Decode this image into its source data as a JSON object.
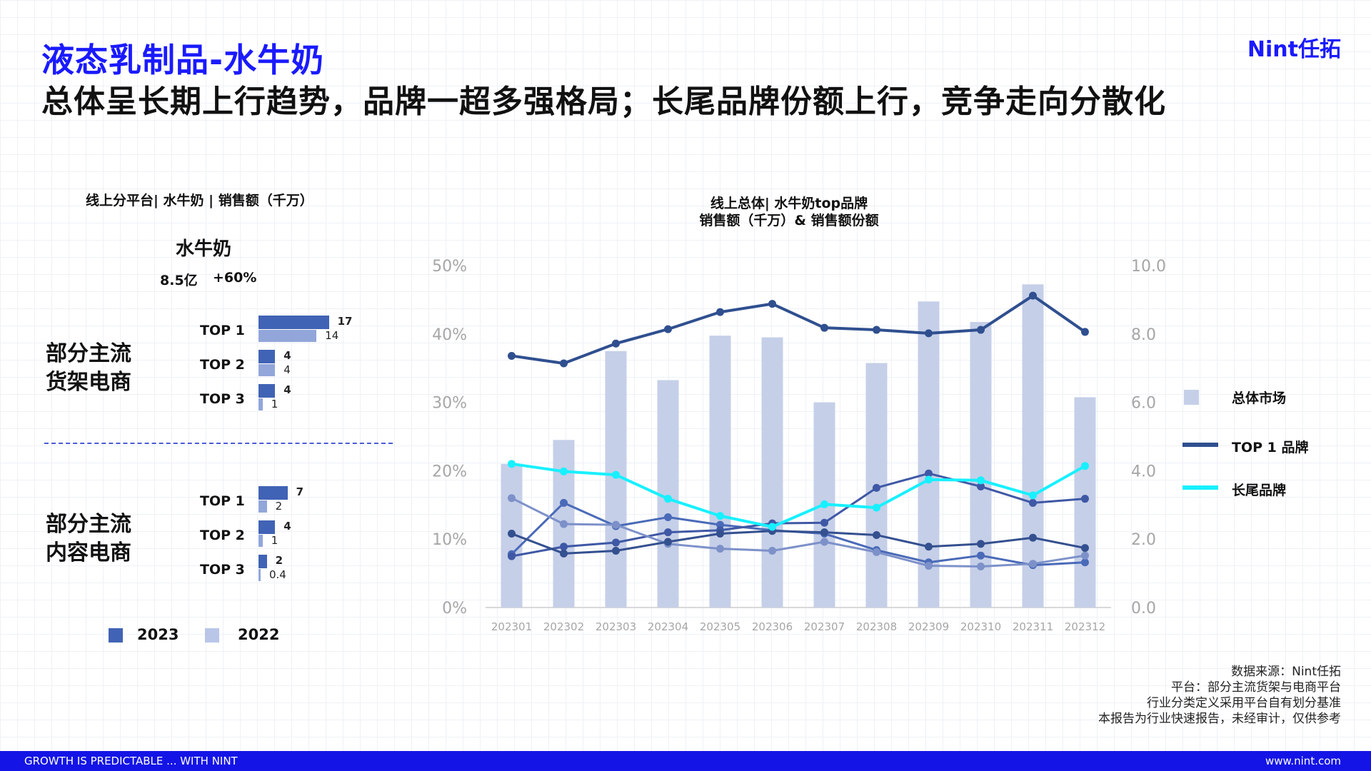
{
  "header": {
    "title": "液态乳制品-水牛奶",
    "subtitle": "总体呈长期上行趋势，品牌一超多强格局；长尾品牌份额上行，竞争走向分散化",
    "logo": "Nint任拓"
  },
  "left_panel": {
    "caption": "线上分平台| 水牛奶 | 销售额（千万）",
    "heading": "水牛奶",
    "total": "8.5亿",
    "growth": "+60%",
    "groups": [
      {
        "label_line1": "部分主流",
        "label_line2": "货架电商",
        "ranks": [
          {
            "label": "TOP 1",
            "v2023": 17,
            "v2022": 14,
            "v2023_label": "17",
            "v2022_label": "14"
          },
          {
            "label": "TOP 2",
            "v2023": 4,
            "v2022": 4,
            "v2023_label": "4",
            "v2022_label": "4"
          },
          {
            "label": "TOP 3",
            "v2023": 4,
            "v2022": 1,
            "v2023_label": "4",
            "v2022_label": "1"
          }
        ]
      },
      {
        "label_line1": "部分主流",
        "label_line2": "内容电商",
        "ranks": [
          {
            "label": "TOP 1",
            "v2023": 7,
            "v2022": 2,
            "v2023_label": "7",
            "v2022_label": "2"
          },
          {
            "label": "TOP 2",
            "v2023": 4,
            "v2022": 1,
            "v2023_label": "4",
            "v2022_label": "1"
          },
          {
            "label": "TOP 3",
            "v2023": 2,
            "v2022": 0.4,
            "v2023_label": "2",
            "v2022_label": "0.4"
          }
        ]
      }
    ],
    "legend": [
      {
        "label": "2023",
        "color": "#4163b5"
      },
      {
        "label": "2022",
        "color": "#b9c6e8"
      }
    ]
  },
  "chart_data": {
    "type": "bar+line",
    "title_line1": "线上总体| 水牛奶top品牌",
    "title_line2": "销售额（千万）& 销售额份额",
    "categories": [
      "202301",
      "202302",
      "202303",
      "202304",
      "202305",
      "202306",
      "202307",
      "202308",
      "202309",
      "202310",
      "202311",
      "202312"
    ],
    "y_left": {
      "ticks": [
        "0%",
        "10%",
        "20%",
        "30%",
        "40%",
        "50%"
      ],
      "range": [
        0,
        50
      ]
    },
    "y_right": {
      "ticks": [
        "0.0",
        "2.0",
        "4.0",
        "6.0",
        "8.0",
        "10.0"
      ],
      "range": [
        0,
        10
      ]
    },
    "bars": {
      "name": "总体市场",
      "axis": "right",
      "color": "#c5cfe8",
      "values": [
        4.2,
        4.9,
        7.5,
        6.65,
        7.95,
        7.9,
        6.0,
        7.15,
        8.95,
        8.35,
        9.45,
        6.15
      ]
    },
    "series": [
      {
        "name": "TOP 1 品牌",
        "axis": "left",
        "color": "#2f4f8f",
        "width": 4,
        "values": [
          36.8,
          35.7,
          38.6,
          40.7,
          43.2,
          44.4,
          40.9,
          40.6,
          40.1,
          40.6,
          45.6,
          40.3
        ]
      },
      {
        "name": "长尾品牌",
        "axis": "left",
        "color": "#18f0ff",
        "width": 4,
        "values": [
          21.0,
          19.9,
          19.4,
          15.9,
          13.4,
          11.8,
          15.1,
          14.6,
          18.7,
          18.6,
          16.4,
          20.7
        ]
      },
      {
        "axis": "left",
        "color": "#4a6ab8",
        "width": 3,
        "values": [
          7.8,
          15.3,
          11.9,
          13.2,
          12.1,
          11.3,
          10.8,
          8.4,
          6.6,
          7.6,
          6.2,
          6.6
        ]
      },
      {
        "axis": "left",
        "color": "#3f58a5",
        "width": 3,
        "values": [
          7.5,
          8.9,
          9.5,
          11.0,
          11.3,
          12.3,
          12.4,
          17.5,
          19.6,
          17.7,
          15.3,
          15.9
        ]
      },
      {
        "axis": "left",
        "color": "#7d91c9",
        "width": 3,
        "values": [
          16.0,
          12.2,
          12.1,
          9.3,
          8.6,
          8.3,
          9.6,
          8.1,
          6.1,
          6.0,
          6.4,
          7.6
        ]
      },
      {
        "axis": "left",
        "color": "#34508f",
        "width": 3,
        "values": [
          10.8,
          7.9,
          8.3,
          9.6,
          10.8,
          11.2,
          11.0,
          10.6,
          8.9,
          9.3,
          10.2,
          8.7
        ]
      }
    ]
  },
  "right_legend": [
    {
      "label": "总体市场",
      "kind": "square",
      "color": "#c5cfe8"
    },
    {
      "label": "TOP 1 品牌",
      "kind": "line",
      "color": "#2f4f8f"
    },
    {
      "label": "长尾品牌",
      "kind": "line",
      "color": "#18f0ff"
    }
  ],
  "source": {
    "line1": "数据来源：Nint任拓",
    "line2": "平台：部分主流货架与电商平台",
    "line3": "行业分类定义采用平台自有划分基准",
    "line4": "本报告为行业快速报告，未经审计，仅供参考"
  },
  "footer": {
    "left": "GROWTH IS PREDICTABLE ... WITH NINT",
    "right": "www.nint.com"
  }
}
